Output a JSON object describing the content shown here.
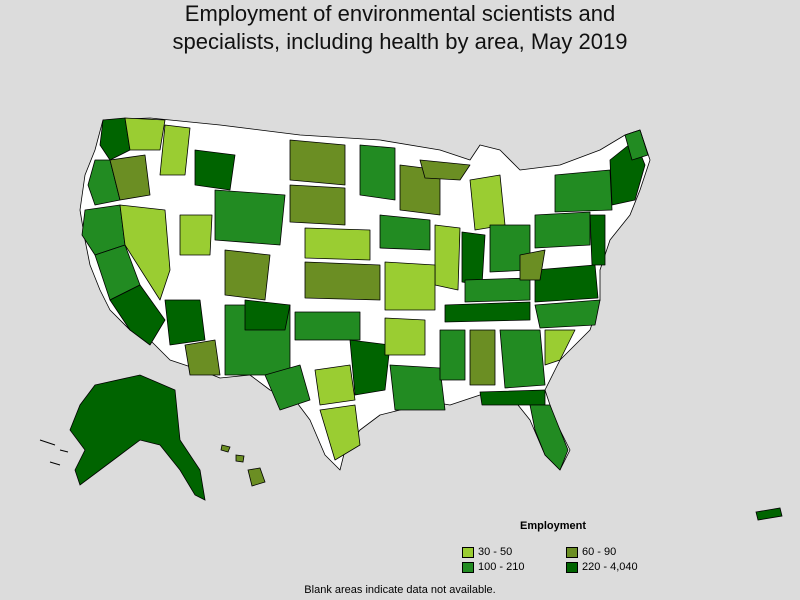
{
  "title_line1": "Employment of environmental scientists and",
  "title_line2": "specialists, including health by area, May 2019",
  "legend": {
    "title": "Employment",
    "items": [
      {
        "label": "30 - 50",
        "color": "#9acd32"
      },
      {
        "label": "60 - 90",
        "color": "#6b8e23"
      },
      {
        "label": "100 - 210",
        "color": "#228b22"
      },
      {
        "label": "220 - 4,040",
        "color": "#006400"
      }
    ]
  },
  "note": "Blank areas indicate data not available.",
  "colors": {
    "background": "#dcdcdc",
    "no_data": "#ffffff",
    "border": "#000000"
  }
}
